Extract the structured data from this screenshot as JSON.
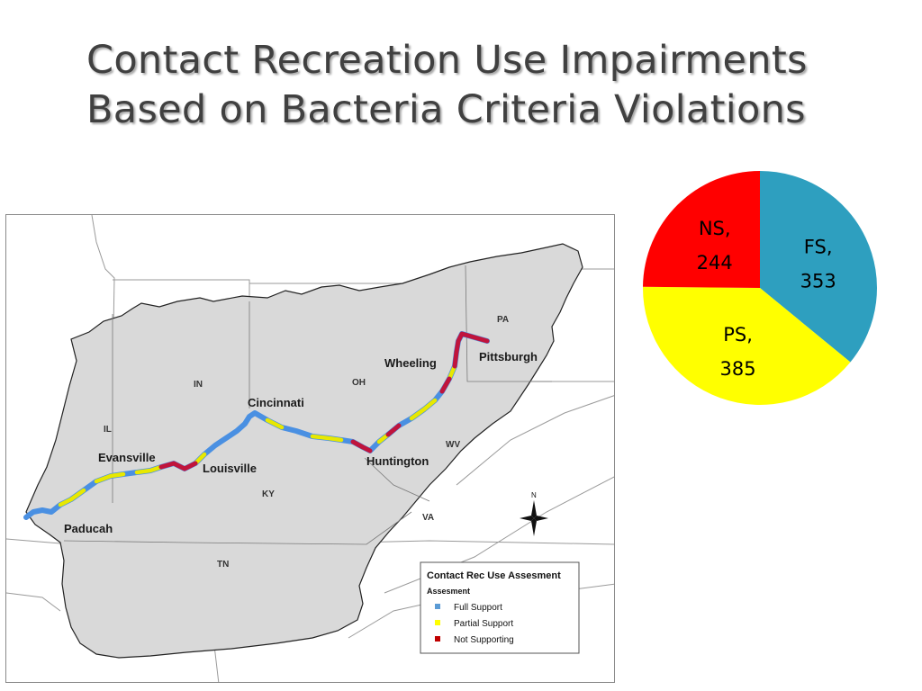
{
  "title": {
    "line1": "Contact Recreation Use Impairments",
    "line2": "Based on Bacteria Criteria Violations"
  },
  "map": {
    "cities": {
      "pittsburgh": "Pittsburgh",
      "wheeling": "Wheeling",
      "cincinnati": "Cincinnati",
      "huntington": "Huntington",
      "evansville": "Evansville",
      "louisville": "Louisville",
      "paducah": "Paducah"
    },
    "states": {
      "pa": "PA",
      "in": "IN",
      "oh": "OH",
      "il": "IL",
      "wv": "WV",
      "ky": "KY",
      "va": "VA",
      "tn": "TN"
    },
    "north": "N",
    "legend": {
      "title": "Contact Rec Use Assesment",
      "subtitle": "Assesment",
      "items": [
        {
          "label": "Full Support",
          "color": "#5b9bd5"
        },
        {
          "label": "Partial Support",
          "color": "#ffff00"
        },
        {
          "label": "Not Supporting",
          "color": "#c00000"
        }
      ]
    },
    "colors": {
      "basin": "#d9d9d9",
      "full": "#4a90e2",
      "partial": "#e8e800",
      "not": "#c0143c"
    }
  },
  "chart_data": {
    "type": "pie",
    "slices": [
      {
        "label": "FS,",
        "value": 353,
        "color": "#2e9fbf"
      },
      {
        "label": "PS,",
        "value": 385,
        "color": "#ffff00"
      },
      {
        "label": "NS,",
        "value": 244,
        "color": "#ff0000"
      }
    ],
    "start_angle_deg": 0,
    "direction": "clockwise"
  }
}
